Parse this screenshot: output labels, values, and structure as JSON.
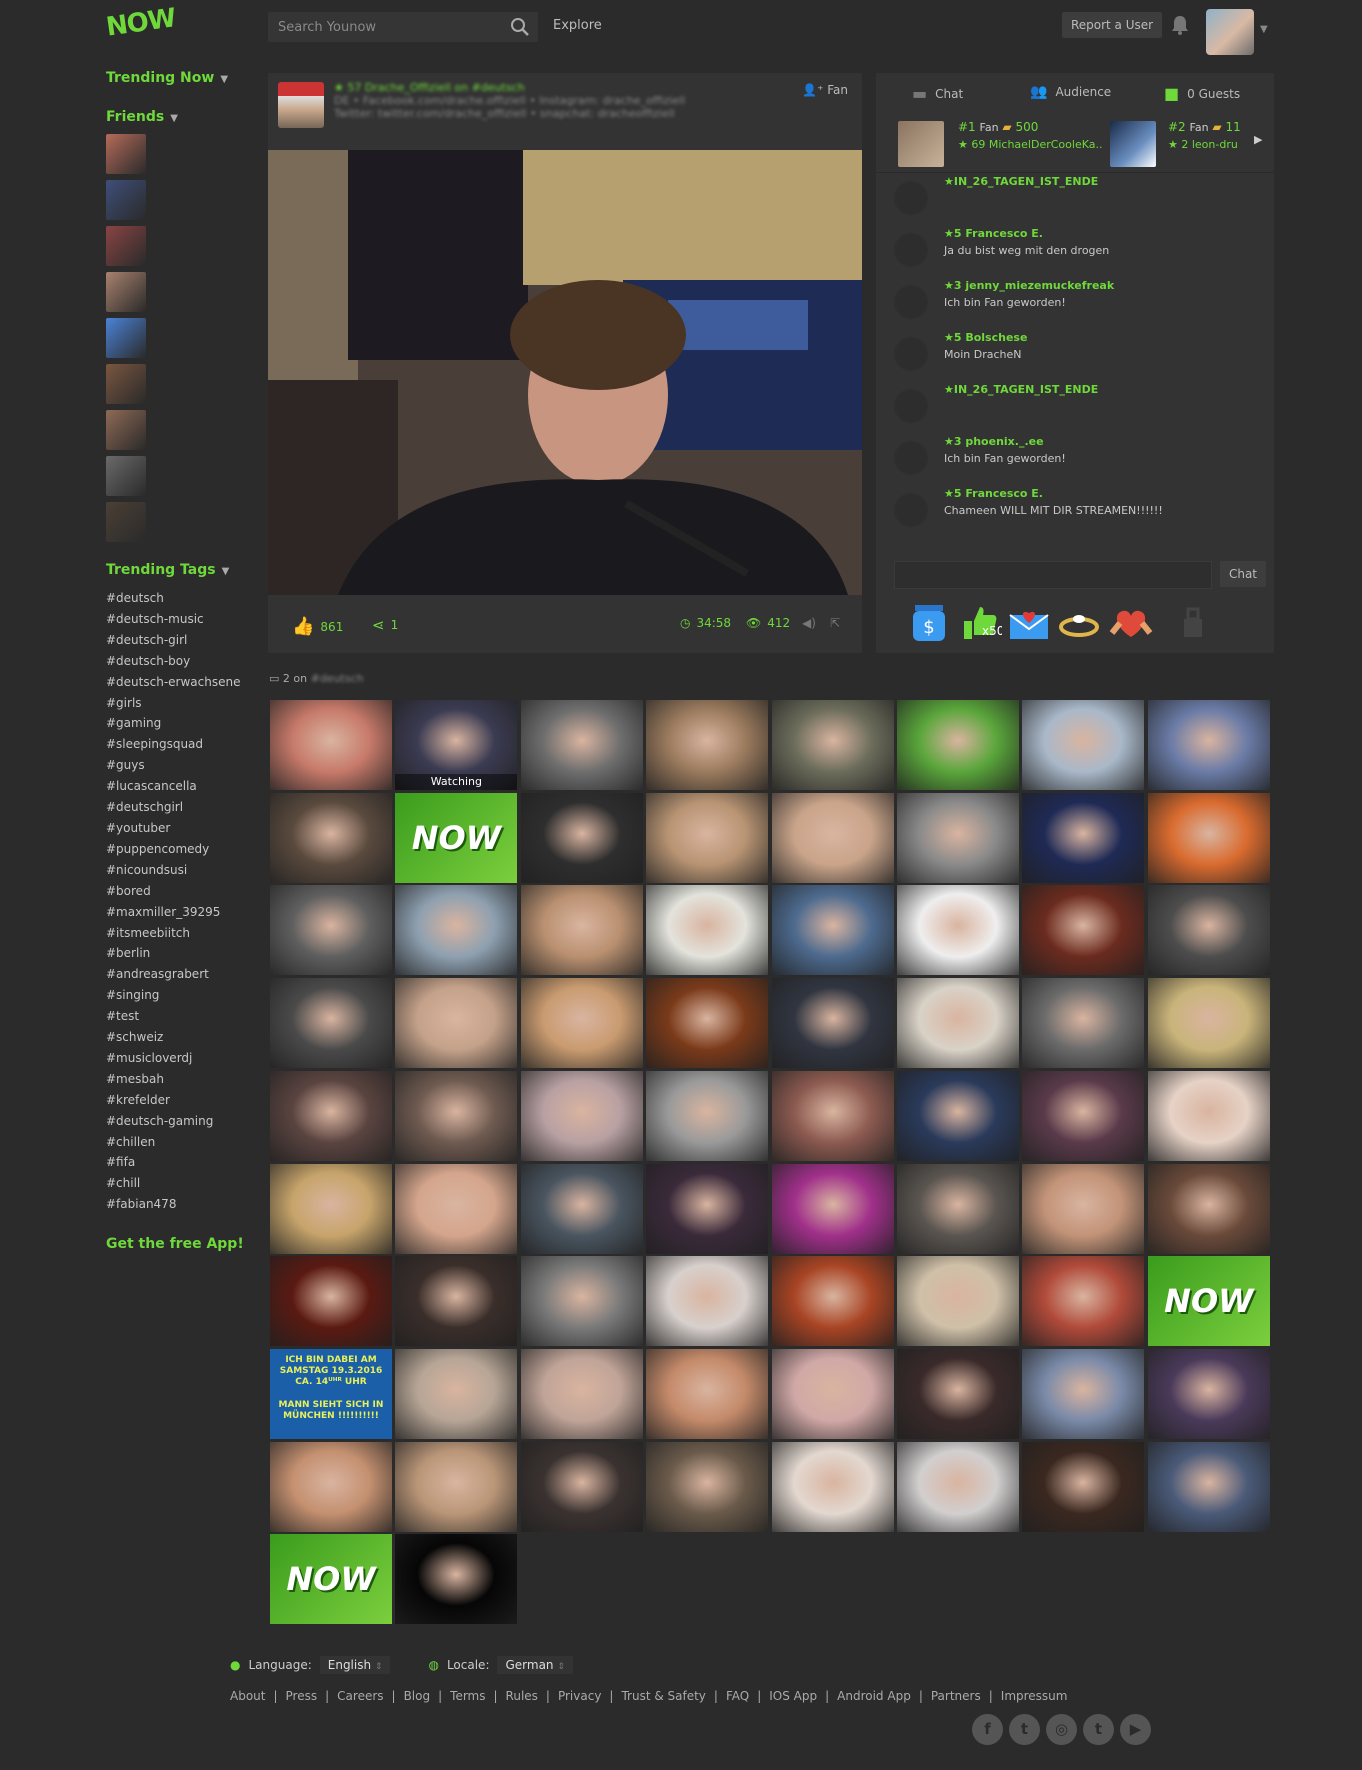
{
  "header": {
    "logo": "NOW",
    "search_placeholder": "Search Younow",
    "explore": "Explore",
    "report_button": "Report a User"
  },
  "sidebar": {
    "trending_now": "Trending Now",
    "friends": "Friends",
    "friend_colors": [
      "#b56b5a",
      "#3f4f7a",
      "#8a4444",
      "#a9826e",
      "#4b83d8",
      "#7a5640",
      "#8f6a55",
      "#6a6a6a",
      "#4a4035"
    ],
    "trending_tags": "Trending Tags",
    "tags": [
      "#deutsch",
      "#deutsch-music",
      "#deutsch-girl",
      "#deutsch-boy",
      "#deutsch-erwachsene",
      "#girls",
      "#gaming",
      "#sleepingsquad",
      "#guys",
      "#lucascancella",
      "#deutschgirl",
      "#youtuber",
      "#puppencomedy",
      "#nicoundsusi",
      "#bored",
      "#maxmiller_39295",
      "#itsmeebiitch",
      "#berlin",
      "#andreasgrabert",
      "#singing",
      "#test",
      "#schweiz",
      "#musicloverdj",
      "#mesbah",
      "#krefelder",
      "#deutsch-gaming",
      "#chillen",
      "#fifa",
      "#chill",
      "#fabian478"
    ],
    "get_app": "Get the free App!"
  },
  "stream": {
    "fan_button": "Fan",
    "likes": "861",
    "shares": "1",
    "duration": "34:58",
    "viewers": "412"
  },
  "chat": {
    "tab_chat": "Chat",
    "tab_audience": "Audience",
    "tab_guests": "0 Guests",
    "fan1_rank": "#1",
    "fan1_label": "Fan",
    "fan1_bars": "500",
    "fan1_name": "★ 69 MichaelDerCooleKa..",
    "fan2_rank": "#2",
    "fan2_label": "Fan",
    "fan2_bars": "11",
    "fan2_name": "★ 2 leon-dru",
    "messages": [
      {
        "name": "★IN_26_TAGEN_IST_ENDE",
        "text": ""
      },
      {
        "name": "★5 Francesco E.",
        "text": "Ja du bist weg mit den drogen"
      },
      {
        "name": "★3 jenny_miezemuckefreak",
        "text": "Ich bin Fan geworden!"
      },
      {
        "name": "★5 Bolschese",
        "text": "Moin DracheN"
      },
      {
        "name": "★IN_26_TAGEN_IST_ENDE",
        "text": ""
      },
      {
        "name": "★3 phoenix._.ee",
        "text": "Ich bin Fan geworden!"
      },
      {
        "name": "★5 Francesco E.",
        "text": "Chameen WILL MIT DIR STREAMEN!!!!!!"
      }
    ],
    "send_button": "Chat",
    "gift_icons": [
      "tip-jar-icon",
      "thumbs-up-x50-icon",
      "love-letter-icon",
      "ring-icon",
      "heart-hands-icon",
      "locked-gift-icon"
    ],
    "gift_x50": "x50"
  },
  "grid": {
    "label": "2 on",
    "watching": "Watching",
    "now_text": "NOW",
    "notice_line1": "ICH BIN DABEI AM SAMSTAG 19.3.2016 CA. 14ᵁᴴᴿ UHR",
    "notice_line2": "MANN SIEHT SICH IN MÜNCHEN !!!!!!!!!!",
    "tile_colors": [
      "#c77a6a",
      "#3b3b52",
      "#6e6e6e",
      "#9b7b5e",
      "#6d6d5c",
      "#5aa63b",
      "#a9b8c9",
      "#6a7ba6",
      "#5a4a3e",
      "NOW",
      "#2e2e2e",
      "#b89473",
      "#c9a48a",
      "#8a8a8a",
      "#1f2a55",
      "#d96b2f",
      "#5f5f5f",
      "#8ea0b0",
      "#b99070",
      "#e3e3dc",
      "#4d6a8e",
      "#efeeee",
      "#6b2b1f",
      "#4d4d4d",
      "#4a4a4a",
      "#c4a189",
      "#c99b70",
      "#7a3a1a",
      "#303540",
      "#d9d2c7",
      "#6b6b6b",
      "#c9b47a",
      "#5a4440",
      "#6e5a50",
      "#b8a0a2",
      "#9a9a9a",
      "#8c5a50",
      "#2a3a5a",
      "#5a3a4a",
      "#e6d2c6",
      "#c7a46b",
      "#d4a58c",
      "#4a5560",
      "#3a2a3a",
      "#a0308a",
      "#5a5550",
      "#c29378",
      "#6a4a3a",
      "#5a1a12",
      "#3a2e2a",
      "#7a7a7a",
      "#d8d0cc",
      "#a84424",
      "#cfc0a8",
      "#b04a3a",
      "NOW",
      "NOTICE",
      "#b6a596",
      "#c0a498",
      "#c48a6a",
      "#d0a8a6",
      "#3a2a2a",
      "#7a8aa8",
      "#4a3a5a",
      "#c49070",
      "#ba9678",
      "#3a3230",
      "#6a5a4a",
      "#e3d8d0",
      "#d2cfcf",
      "#3a2820",
      "#4a5a78",
      "NOW",
      "#060606"
    ]
  },
  "footer": {
    "language_label": "Language:",
    "language_value": "English",
    "locale_label": "Locale:",
    "locale_value": "German",
    "links": [
      "About",
      "Press",
      "Careers",
      "Blog",
      "Terms",
      "Rules",
      "Privacy",
      "Trust & Safety",
      "FAQ",
      "IOS App",
      "Android App",
      "Partners",
      "Impressum"
    ],
    "social": [
      "f",
      "t",
      "◎",
      "t",
      "▶"
    ],
    "social_names": [
      "facebook-icon",
      "twitter-icon",
      "instagram-icon",
      "tumblr-icon",
      "youtube-icon"
    ]
  }
}
